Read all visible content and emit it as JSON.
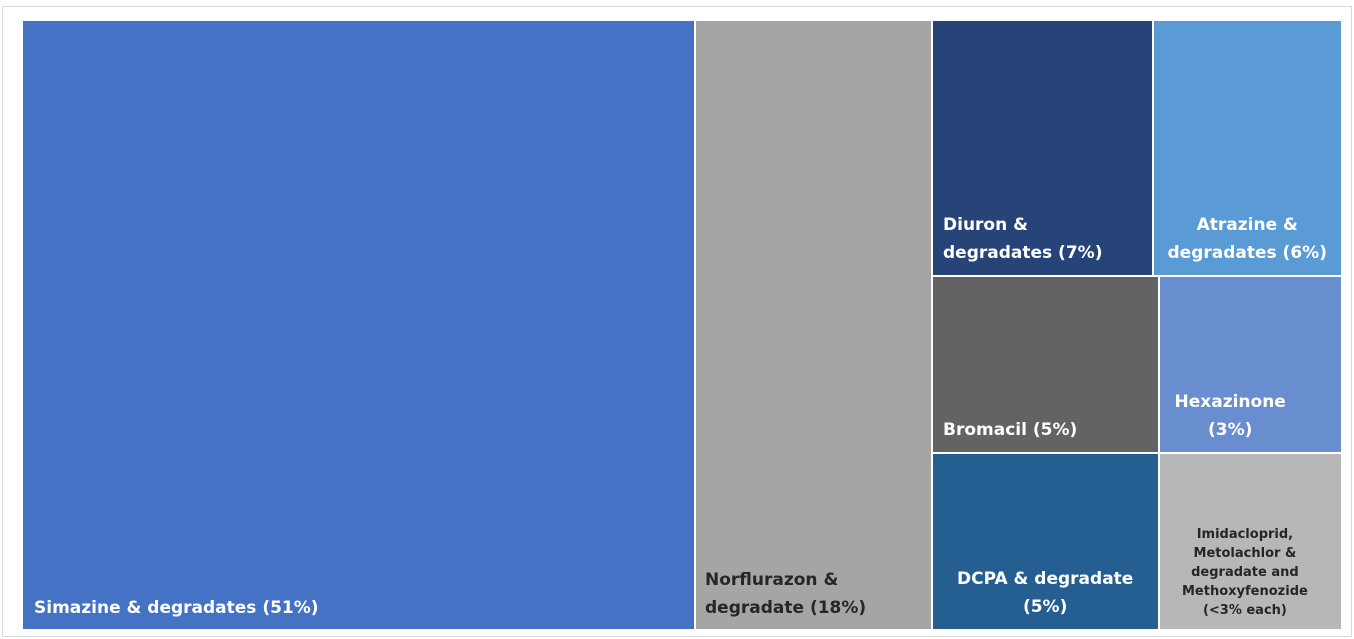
{
  "chart_data": {
    "type": "treemap",
    "title": "",
    "unit": "%",
    "colors": {
      "border": "#ffffff"
    },
    "items": [
      {
        "name": "Simazine & degradates",
        "label_lines": [
          "Simazine & degradates (51%)"
        ],
        "value": 51,
        "color": "#4472c4",
        "text_color": "#ffffff"
      },
      {
        "name": "Norflurazon & degradate",
        "label_lines": [
          "Norflurazon &",
          "degradate (18%)"
        ],
        "value": 18,
        "color": "#a5a5a5",
        "text_color": "#262626"
      },
      {
        "name": "Diuron & degradates",
        "label_lines": [
          "Diuron &",
          "degradates (7%)"
        ],
        "value": 7,
        "color": "#264478",
        "text_color": "#ffffff"
      },
      {
        "name": "Atrazine & degradates",
        "label_lines": [
          "Atrazine &",
          "degradates (6%)"
        ],
        "value": 6,
        "color": "#5b9bd5",
        "text_color": "#ffffff"
      },
      {
        "name": "Bromacil",
        "label_lines": [
          "Bromacil (5%)"
        ],
        "value": 5,
        "color": "#636363",
        "text_color": "#ffffff"
      },
      {
        "name": "Hexazinone",
        "label_lines": [
          "Hexazinone",
          "(3%)"
        ],
        "value": 3,
        "color": "#698ed0",
        "text_color": "#ffffff"
      },
      {
        "name": "DCPA & degradate",
        "label_lines": [
          "DCPA & degradate",
          "(5%)"
        ],
        "value": 5,
        "color": "#255e91",
        "text_color": "#ffffff"
      },
      {
        "name": "Imidacloprid, Metolachlor & degradate and Methoxyfenozide",
        "label_lines": [
          "Imidacloprid,",
          "Metolachlor &",
          "degradate and",
          "Methoxyfenozide",
          "(<3% each)"
        ],
        "value": 3,
        "color": "#b7b7b7",
        "text_color": "#262626"
      }
    ]
  }
}
